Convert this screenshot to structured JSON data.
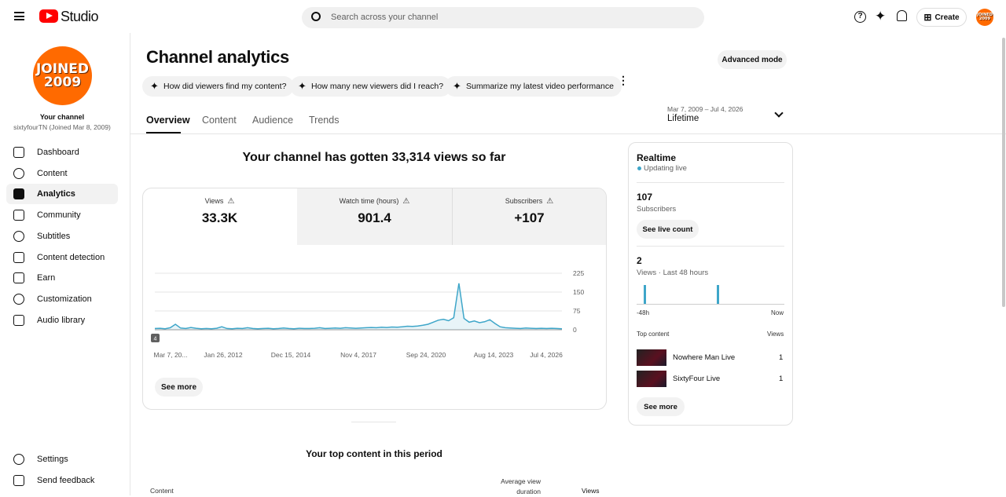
{
  "header": {
    "logo": "Studio",
    "search_placeholder": "Search across your channel",
    "create": "Create",
    "avatar": [
      "JOINED",
      "2009"
    ]
  },
  "sidebar": {
    "avatar": [
      "JOINED",
      "2009"
    ],
    "channel_label": "Your channel",
    "channel_name": "sixtyfourTN (Joined Mar 8, 2009)",
    "nav": [
      "Dashboard",
      "Content",
      "Analytics",
      "Community",
      "Subtitles",
      "Content detection",
      "Earn",
      "Customization",
      "Audio library"
    ],
    "active": 2,
    "footer": [
      "Settings",
      "Send feedback"
    ]
  },
  "page": {
    "title": "Channel analytics",
    "advanced": "Advanced mode",
    "prompts": [
      "How did viewers find my content?",
      "How many new viewers did I reach?",
      "Summarize my latest video performance"
    ],
    "tabs": [
      "Overview",
      "Content",
      "Audience",
      "Trends"
    ],
    "active_tab": 0,
    "date_range": "Mar 7, 2009 – Jul 4, 2026",
    "period": "Lifetime"
  },
  "summary": "Your channel has gotten 33,314 views so far",
  "metrics": [
    {
      "label": "Views",
      "value": "33.3K"
    },
    {
      "label": "Watch time (hours)",
      "value": "901.4"
    },
    {
      "label": "Subscribers",
      "value": "+107"
    }
  ],
  "chart_data": {
    "type": "line",
    "x_tick_labels": [
      "Mar 7, 20...",
      "Jan 26, 2012",
      "Dec 15, 2014",
      "Nov 4, 2017",
      "Sep 24, 2020",
      "Aug 14, 2023",
      "Jul 4, 2026"
    ],
    "badge": "4",
    "series": [
      {
        "name": "Views",
        "color": "#3ea6c9",
        "values": [
          5,
          6,
          4,
          8,
          22,
          7,
          5,
          9,
          6,
          4,
          5,
          4,
          6,
          12,
          5,
          4,
          6,
          5,
          8,
          5,
          4,
          5,
          6,
          4,
          5,
          7,
          5,
          4,
          6,
          5,
          5,
          6,
          8,
          5,
          6,
          7,
          6,
          8,
          7,
          6,
          7,
          8,
          9,
          8,
          10,
          9,
          11,
          10,
          12,
          14,
          13,
          15,
          18,
          22,
          30,
          38,
          42,
          36,
          48,
          185,
          45,
          30,
          35,
          28,
          32,
          40,
          25,
          12,
          8,
          7,
          6,
          5,
          7,
          6,
          5,
          6,
          5,
          6,
          5,
          4
        ]
      }
    ],
    "ylim": [
      0,
      225
    ],
    "yticks": [
      0,
      75,
      150,
      225
    ],
    "grid": true
  },
  "see_more": "See more",
  "top_content_title": "Your top content in this period",
  "table_headers": [
    "Content",
    "Average view duration",
    "Views"
  ],
  "realtime": {
    "title": "Realtime",
    "status": "Updating live",
    "subscribers": 107,
    "subscribers_label": "Subscribers",
    "live_button": "See live count",
    "views": 2,
    "views_label": "Views · Last 48 hours",
    "bars": [
      1,
      1
    ],
    "axis_labels": [
      "-48h",
      "Now"
    ],
    "top_content_label": "Top content",
    "top_content_views_label": "Views",
    "items": [
      {
        "name": "Nowhere Man Live",
        "views": 1
      },
      {
        "name": "SixtyFour Live",
        "views": 1
      }
    ],
    "see_more": "See more"
  }
}
